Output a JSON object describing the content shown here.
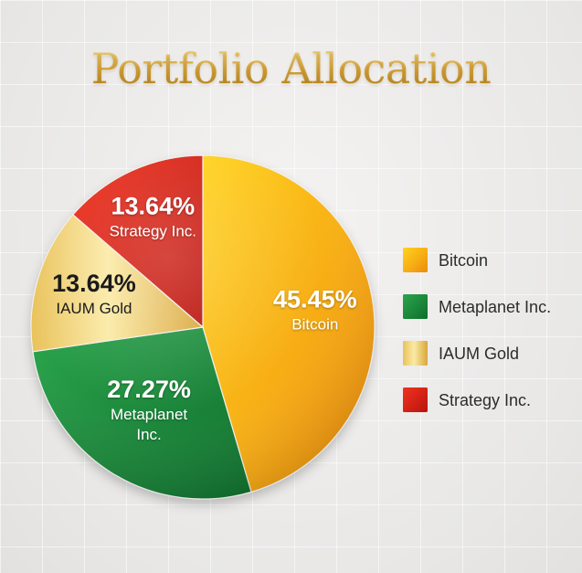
{
  "title": "Portfolio Allocation",
  "chart_data": {
    "type": "pie",
    "title": "Portfolio Allocation",
    "slices": [
      {
        "name": "Bitcoin",
        "value": 45.45,
        "label": "45.45%",
        "label_lines": [
          "Bitcoin"
        ],
        "color": "#f5a818"
      },
      {
        "name": "Metaplanet Inc.",
        "value": 27.27,
        "label": "27.27%",
        "label_lines": [
          "Metaplanet",
          "Inc."
        ],
        "color": "#1f8c3c"
      },
      {
        "name": "IAUM Gold",
        "value": 13.64,
        "label": "13.64%",
        "label_lines": [
          "IAUM Gold"
        ],
        "color": "#ecc45a"
      },
      {
        "name": "Strategy Inc.",
        "value": 13.64,
        "label": "13.64%",
        "label_lines": [
          "Strategy Inc."
        ],
        "color": "#e02a1c"
      }
    ],
    "legend": [
      "Bitcoin",
      "Metaplanet Inc.",
      "IAUM Gold",
      "Strategy Inc."
    ],
    "legend_position": "right",
    "start_angle_deg": 0,
    "direction": "clockwise"
  }
}
